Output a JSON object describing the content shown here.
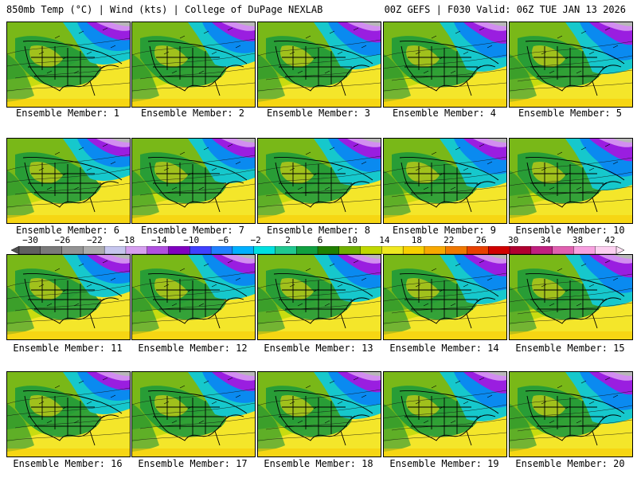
{
  "header": {
    "left": "850mb Temp (°C) | Wind (kts) | College of DuPage NEXLAB",
    "right": "00Z GEFS | F030 Valid: 06Z TUE JAN 13 2026"
  },
  "panels": [
    {
      "label": "Ensemble Member: 1"
    },
    {
      "label": "Ensemble Member: 2"
    },
    {
      "label": "Ensemble Member: 3"
    },
    {
      "label": "Ensemble Member: 4"
    },
    {
      "label": "Ensemble Member: 5"
    },
    {
      "label": "Ensemble Member: 6"
    },
    {
      "label": "Ensemble Member: 7"
    },
    {
      "label": "Ensemble Member: 8"
    },
    {
      "label": "Ensemble Member: 9"
    },
    {
      "label": "Ensemble Member: 10"
    },
    {
      "label": "Ensemble Member: 11"
    },
    {
      "label": "Ensemble Member: 12"
    },
    {
      "label": "Ensemble Member: 13"
    },
    {
      "label": "Ensemble Member: 14"
    },
    {
      "label": "Ensemble Member: 15"
    },
    {
      "label": "Ensemble Member: 16"
    },
    {
      "label": "Ensemble Member: 17"
    },
    {
      "label": "Ensemble Member: 18"
    },
    {
      "label": "Ensemble Member: 19"
    },
    {
      "label": "Ensemble Member: 20"
    }
  ],
  "colorbar": {
    "labels": [
      "−30",
      "−26",
      "−22",
      "−18",
      "−14",
      "−10",
      "−6",
      "−2",
      "2",
      "6",
      "10",
      "14",
      "18",
      "22",
      "26",
      "30",
      "34",
      "38",
      "42"
    ],
    "colors": [
      "#606060",
      "#7a7a7a",
      "#939393",
      "#acacac",
      "#c6c6ee",
      "#d6a0f0",
      "#b050e0",
      "#8000c0",
      "#4040ff",
      "#2080ff",
      "#00b0ff",
      "#00e0e0",
      "#20c890",
      "#10a040",
      "#208000",
      "#70b000",
      "#c0d800",
      "#f0e820",
      "#f8d000",
      "#f8a800",
      "#f07800",
      "#e84000",
      "#d00000",
      "#b00030",
      "#c02080",
      "#e060b0",
      "#f8a0e0",
      "#fcd0f0"
    ]
  }
}
